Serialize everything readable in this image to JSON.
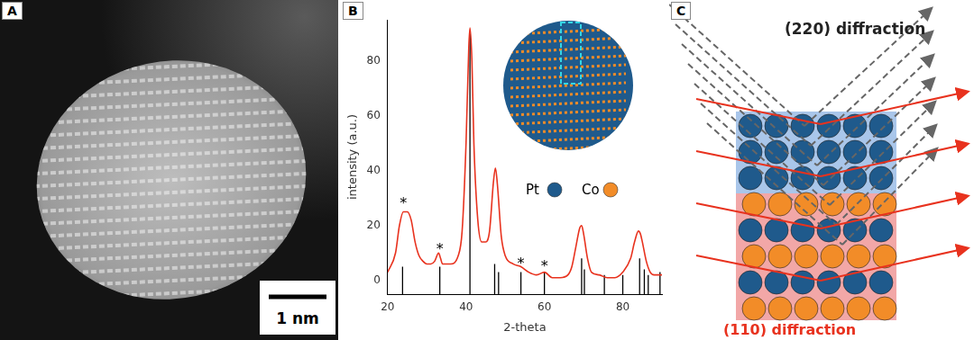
{
  "chart_data": {
    "type": "line",
    "x_label": "2-theta",
    "y_label": "intensity (a.u.)",
    "xlim": [
      20,
      90
    ],
    "xticks": [
      20,
      40,
      60,
      80
    ],
    "ylim": [
      -5,
      95
    ],
    "yticks": [
      0,
      20,
      40,
      60,
      80
    ],
    "grid": false,
    "series": [
      {
        "type": "line",
        "color": "#e8321e",
        "x": [
          20,
          22,
          23,
          24,
          25,
          26,
          27,
          28,
          29,
          30,
          31,
          32,
          33,
          33.5,
          34,
          36,
          38,
          39,
          40,
          40.7,
          41,
          41.5,
          42,
          43,
          44,
          45,
          46,
          47,
          47.5,
          48,
          49,
          50,
          52,
          54,
          56,
          58,
          60,
          62,
          64,
          66,
          67,
          68,
          69,
          69.5,
          70,
          71,
          72,
          74,
          76,
          78,
          80,
          82,
          83,
          84,
          84.5,
          85,
          86,
          87,
          88,
          90
        ],
        "values": [
          3,
          10,
          20,
          25,
          25,
          22,
          14,
          9,
          7,
          6,
          6,
          7,
          10,
          8,
          6,
          6,
          9,
          18,
          50,
          85,
          92,
          80,
          50,
          22,
          14,
          14,
          18,
          36,
          41,
          35,
          16,
          9,
          6,
          5,
          3,
          2,
          3,
          1,
          1,
          2,
          5,
          12,
          19,
          20,
          17,
          8,
          3,
          2,
          1,
          1,
          3,
          8,
          14,
          18,
          17,
          14,
          7,
          3,
          2,
          2
        ]
      },
      {
        "type": "stick",
        "color": "#000000",
        "x": [
          23.8,
          33.3,
          41,
          47.3,
          48.3,
          54,
          60,
          69.5,
          70.2,
          75.3,
          80,
          84.3,
          85.5,
          86.5,
          89.5
        ],
        "values": [
          5,
          5,
          90,
          6,
          3,
          3,
          3,
          8,
          4,
          2,
          2,
          8,
          4,
          2,
          3
        ]
      }
    ],
    "annotations": [
      {
        "x": 24,
        "y": 28,
        "text": "*"
      },
      {
        "x": 33.3,
        "y": 11,
        "text": "*"
      },
      {
        "x": 54,
        "y": 6,
        "text": "*"
      },
      {
        "x": 60,
        "y": 5,
        "text": "*"
      }
    ]
  },
  "panels": {
    "A": {
      "label": "A",
      "scale_bar": "1 nm"
    },
    "B": {
      "label": "B",
      "inset_legend": [
        {
          "label": "Pt",
          "color": "#1f5a8c"
        },
        {
          "label": "Co",
          "color": "#f28c28"
        }
      ]
    },
    "C": {
      "label": "C",
      "top_text": "(220) diffraction",
      "bottom_text": "(110) diffraction",
      "bottom_color": "#e8321e"
    }
  }
}
